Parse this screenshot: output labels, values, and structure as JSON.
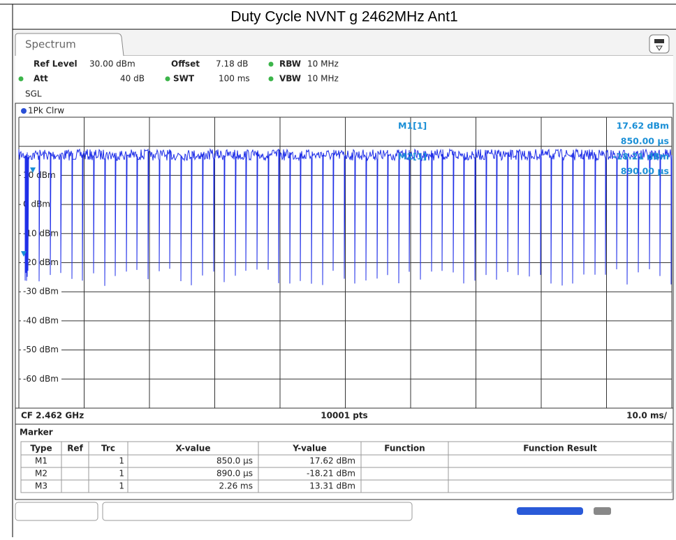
{
  "title": "Duty Cycle NVNT g 2462MHz Ant1",
  "tab": "Spectrum",
  "settings": [
    {
      "label": "Ref Level",
      "value": "30.00 dBm"
    },
    {
      "label": "Offset",
      "value": "7.18 dB"
    },
    {
      "label": "RBW",
      "value": "10 MHz"
    },
    {
      "label": "Att",
      "value": "40 dB"
    },
    {
      "label": "SWT",
      "value": "100 ms"
    },
    {
      "label": "VBW",
      "value": "10 MHz"
    }
  ],
  "mode": "SGL",
  "trace": "1Pk Clrw",
  "y_labels": [
    "10 dBm",
    "0 dBm",
    "-10 dBm",
    "-20 dBm",
    "-30 dBm",
    "-40 dBm",
    "-50 dBm",
    "-60 dBm"
  ],
  "marker_readout": {
    "m1_name": "M1[1]",
    "m1_level": "17.62 dBm",
    "m1_time": "850.00 µs",
    "m2_name": "M2[1]",
    "m2_level": "-18.21 dBm",
    "m2_time": "890.00 µs"
  },
  "footer": {
    "center_frequency": "CF 2.462 GHz",
    "points": "10001 pts",
    "span_per_div": "10.0 ms/"
  },
  "marker_table": {
    "title": "Marker",
    "headers": [
      "Type",
      "Ref",
      "Trc",
      "X-value",
      "Y-value",
      "Function",
      "Function Result"
    ],
    "rows": [
      {
        "type": "M1",
        "trc": "1",
        "x": "850.0 µs",
        "y": "17.62 dBm"
      },
      {
        "type": "M2",
        "trc": "1",
        "x": "890.0 µs",
        "y": "-18.21 dBm"
      },
      {
        "type": "M3",
        "trc": "1",
        "x": "2.26 ms",
        "y": "13.31 dBm"
      }
    ]
  }
}
